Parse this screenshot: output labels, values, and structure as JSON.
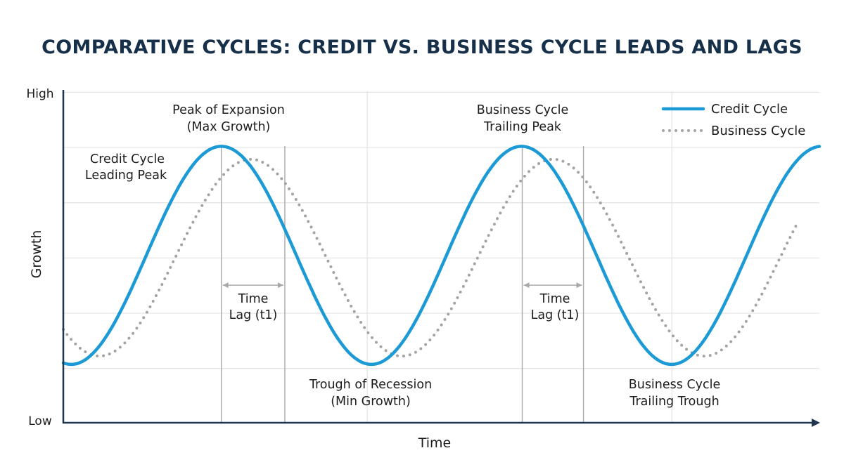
{
  "chart_data": {
    "type": "line",
    "title": "COMPARATIVE CYCLES: CREDIT VS. BUSINESS CYCLE LEADS AND LAGS",
    "xlabel": "Time",
    "ylabel": "Growth",
    "y_tick_labels": {
      "high": "High",
      "low": "Low"
    },
    "xlim": [
      0,
      100
    ],
    "ylim": [
      0,
      100
    ],
    "grid": true,
    "legend_position": "top-right",
    "series": [
      {
        "name": "Credit Cycle",
        "style": "solid",
        "color": "#1b9ad6",
        "shape": "sinusoid",
        "midline": 50.5,
        "amplitude": 32.9,
        "period": 39.7,
        "first_peak_x": 20.9,
        "x_range": [
          0,
          100
        ]
      },
      {
        "name": "Business Cycle",
        "style": "dotted",
        "color": "#a3a3a3",
        "shape": "sinusoid",
        "midline": 49.8,
        "amplitude": 29.7,
        "period": 40,
        "first_peak_x": 24.8,
        "x_range": [
          0,
          97.2
        ]
      }
    ],
    "reference_lines_x": [
      20.9,
      29.3,
      40.2,
      60.7,
      68.8,
      80.5
    ],
    "lag_arrows": [
      {
        "from": 20.9,
        "to": 29.3,
        "y": 41.5,
        "label": [
          "Time",
          "Lag (t1)"
        ]
      },
      {
        "from": 60.7,
        "to": 68.8,
        "y": 41.5,
        "label": [
          "Time",
          "Lag (t1)"
        ]
      }
    ],
    "annotations": [
      [
        "Peak of Expansion",
        "(Max Growth)"
      ],
      [
        "Credit Cycle",
        "Leading Peak"
      ],
      [
        "Trough of Recession",
        "(Min Growth)"
      ],
      [
        "Business Cycle",
        "Trailing Peak"
      ],
      [
        "Business Cycle",
        "Trailing Trough"
      ]
    ]
  },
  "colors": {
    "title": "#17304a",
    "axis": "#1f3550",
    "credit": "#1b9ad6",
    "business": "#a3a3a3",
    "grid": "#e3e3e3"
  }
}
